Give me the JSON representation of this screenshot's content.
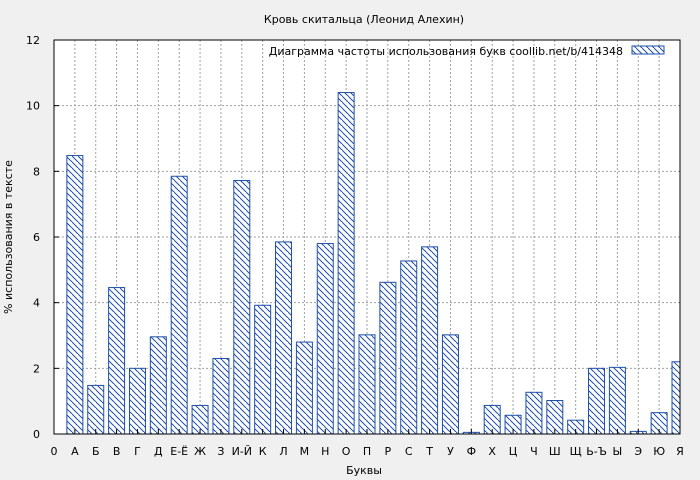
{
  "chart_data": {
    "type": "bar",
    "title": "Кровь скитальца (Леонид Алехин)",
    "xlabel": "Буквы",
    "ylabel": "% использования в тексте",
    "ylim": [
      0,
      12
    ],
    "yticks": [
      "0",
      "2",
      "4",
      "6",
      "8",
      "10",
      "12"
    ],
    "grid": true,
    "legend_position": "top-right",
    "series": [
      {
        "name": "Диаграмма частоты использования букв  coollib.net/b/414348",
        "color": "#1f4fa8"
      }
    ],
    "categories": [
      "0",
      "А",
      "Б",
      "В",
      "Г",
      "Д",
      "Е-Ё",
      "Ж",
      "З",
      "И-Й",
      "К",
      "Л",
      "М",
      "Н",
      "О",
      "П",
      "Р",
      "С",
      "Т",
      "У",
      "Ф",
      "Х",
      "Ц",
      "Ч",
      "Ш",
      "Щ",
      "Ь-Ъ",
      "Ы",
      "Э",
      "Ю",
      "Я"
    ],
    "values": [
      0,
      8.48,
      1.48,
      4.46,
      2.0,
      2.96,
      7.85,
      0.87,
      2.3,
      7.72,
      3.92,
      5.85,
      2.8,
      5.8,
      10.4,
      3.02,
      4.62,
      5.27,
      5.7,
      3.02,
      0.05,
      0.87,
      0.57,
      1.27,
      1.02,
      0.42,
      2.0,
      2.03,
      0.08,
      0.65,
      2.2
    ]
  }
}
